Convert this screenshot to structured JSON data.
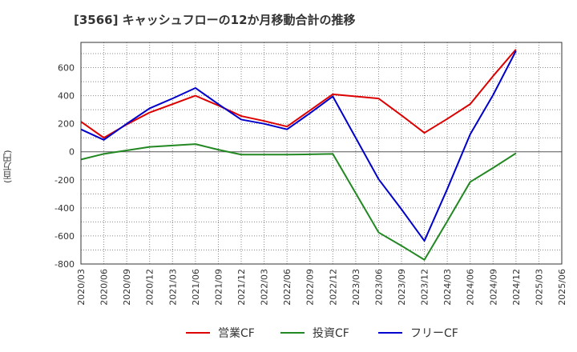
{
  "chart_data": {
    "type": "line",
    "title": "[3566]  キャッシュフローの12か月移動合計の推移",
    "xlabel": "",
    "ylabel": "(百万円)",
    "ylim": [
      -800,
      780
    ],
    "yticks": [
      600,
      400,
      200,
      0,
      -200,
      -400,
      -600,
      -800
    ],
    "categories": [
      "2020/03",
      "2020/06",
      "2020/09",
      "2020/12",
      "2021/03",
      "2021/06",
      "2021/09",
      "2021/12",
      "2022/03",
      "2022/06",
      "2022/09",
      "2022/12",
      "2023/03",
      "2023/06",
      "2023/09",
      "2023/12",
      "2024/03",
      "2024/06",
      "2024/09",
      "2024/12",
      "2025/03",
      "2025/06"
    ],
    "grid": true,
    "legend_position": "bottom",
    "series": [
      {
        "name": "営業CF",
        "color": "#dd0000",
        "values": [
          215,
          100,
          195,
          280,
          340,
          400,
          330,
          255,
          220,
          180,
          295,
          410,
          395,
          380,
          260,
          135,
          235,
          340,
          540,
          730,
          null,
          null
        ]
      },
      {
        "name": "投資CF",
        "color": "#228822",
        "values": [
          -55,
          -15,
          10,
          35,
          45,
          55,
          15,
          -20,
          -20,
          -20,
          -18,
          -15,
          -295,
          -575,
          -670,
          -770,
          -495,
          -215,
          -115,
          -10,
          null,
          null
        ]
      },
      {
        "name": "フリーCF",
        "color": "#0000cc",
        "values": [
          160,
          85,
          200,
          310,
          380,
          455,
          340,
          230,
          200,
          160,
          275,
          395,
          100,
          -195,
          -410,
          -635,
          -265,
          125,
          405,
          720,
          null,
          null
        ]
      }
    ]
  }
}
